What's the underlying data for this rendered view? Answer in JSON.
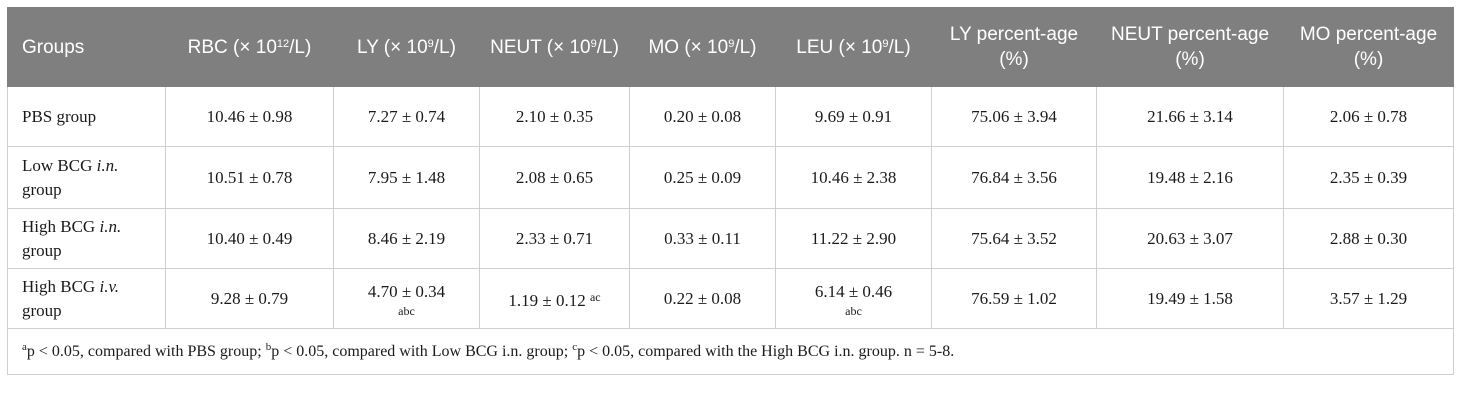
{
  "table": {
    "headers": [
      {
        "pre": "Groups",
        "sup": "",
        "post": ""
      },
      {
        "pre": "RBC (× 10",
        "sup": "12",
        "post": "/L)"
      },
      {
        "pre": "LY (× 10",
        "sup": "9",
        "post": "/L)"
      },
      {
        "pre": "NEUT (× 10",
        "sup": "9",
        "post": "/L)"
      },
      {
        "pre": "MO (× 10",
        "sup": "9",
        "post": "/L)"
      },
      {
        "pre": "LEU (× 10",
        "sup": "9",
        "post": "/L)"
      },
      {
        "pre": "LY percent-age (%)",
        "sup": "",
        "post": ""
      },
      {
        "pre": "NEUT percent-age (%)",
        "sup": "",
        "post": ""
      },
      {
        "pre": "MO percent-age (%)",
        "sup": "",
        "post": ""
      }
    ],
    "rows": [
      {
        "group_pre": "PBS group",
        "group_em": "",
        "group_post": "",
        "cells": [
          {
            "value": "10.46 ± 0.98",
            "mark": ""
          },
          {
            "value": "7.27 ± 0.74",
            "mark": ""
          },
          {
            "value": "2.10 ± 0.35",
            "mark": ""
          },
          {
            "value": "0.20 ± 0.08",
            "mark": ""
          },
          {
            "value": "9.69 ± 0.91",
            "mark": ""
          },
          {
            "value": "75.06 ± 3.94",
            "mark": ""
          },
          {
            "value": "21.66 ± 3.14",
            "mark": ""
          },
          {
            "value": "2.06 ± 0.78",
            "mark": ""
          }
        ]
      },
      {
        "group_pre": "Low BCG ",
        "group_em": "i.n.",
        "group_post": " group",
        "cells": [
          {
            "value": "10.51 ± 0.78",
            "mark": ""
          },
          {
            "value": "7.95 ± 1.48",
            "mark": ""
          },
          {
            "value": "2.08 ± 0.65",
            "mark": ""
          },
          {
            "value": "0.25 ± 0.09",
            "mark": ""
          },
          {
            "value": "10.46 ± 2.38",
            "mark": ""
          },
          {
            "value": "76.84 ± 3.56",
            "mark": ""
          },
          {
            "value": "19.48 ± 2.16",
            "mark": ""
          },
          {
            "value": "2.35 ± 0.39",
            "mark": ""
          }
        ]
      },
      {
        "group_pre": "High BCG ",
        "group_em": "i.n.",
        "group_post": " group",
        "cells": [
          {
            "value": "10.40 ± 0.49",
            "mark": ""
          },
          {
            "value": "8.46 ± 2.19",
            "mark": ""
          },
          {
            "value": "2.33 ± 0.71",
            "mark": ""
          },
          {
            "value": "0.33 ± 0.11",
            "mark": ""
          },
          {
            "value": "11.22 ± 2.90",
            "mark": ""
          },
          {
            "value": "75.64 ± 3.52",
            "mark": ""
          },
          {
            "value": "20.63 ± 3.07",
            "mark": ""
          },
          {
            "value": "2.88 ± 0.30",
            "mark": ""
          }
        ]
      },
      {
        "group_pre": "High BCG ",
        "group_em": "i.v.",
        "group_post": " group",
        "cells": [
          {
            "value": "9.28 ± 0.79",
            "mark": ""
          },
          {
            "value": "4.70 ± 0.34",
            "mark": "abc",
            "mark_style": "below"
          },
          {
            "value": "1.19 ± 0.12",
            "mark": "ac",
            "mark_style": "inline"
          },
          {
            "value": "0.22 ± 0.08",
            "mark": ""
          },
          {
            "value": "6.14 ± 0.46",
            "mark": "abc",
            "mark_style": "below"
          },
          {
            "value": "76.59 ± 1.02",
            "mark": ""
          },
          {
            "value": "19.49 ± 1.58",
            "mark": ""
          },
          {
            "value": "3.57 ± 1.29",
            "mark": ""
          }
        ]
      }
    ],
    "footnote": [
      {
        "sup": "a",
        "text": "p < 0.05, compared with PBS group; "
      },
      {
        "sup": "b",
        "text": "p < 0.05, compared with Low BCG i.n. group; "
      },
      {
        "sup": "c",
        "text": "p < 0.05, compared with the High BCG i.n. group. n = 5-8."
      }
    ]
  }
}
